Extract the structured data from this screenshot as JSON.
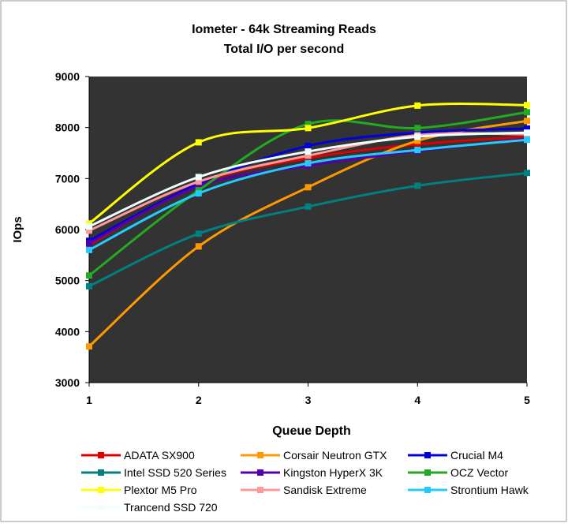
{
  "chart_data": {
    "type": "line",
    "title": "Iometer - 64k Streaming Reads",
    "subtitle": "Total I/O per second",
    "xlabel": "Queue Depth",
    "ylabel": "IOps",
    "x": [
      1,
      2,
      3,
      4,
      5
    ],
    "ylim": [
      3000,
      9000
    ],
    "yticks": [
      3000,
      4000,
      5000,
      6000,
      7000,
      8000,
      9000
    ],
    "grid": false,
    "legend": "bottom",
    "plot_background": "#333333",
    "series": [
      {
        "name": "ADATA SX900",
        "color": "#e00000",
        "values": [
          5700,
          6900,
          7400,
          7670,
          7820
        ]
      },
      {
        "name": "Corsair Neutron GTX",
        "color": "#ff9900",
        "values": [
          3710,
          5670,
          6830,
          7740,
          8130
        ]
      },
      {
        "name": "Crucial M4",
        "color": "#0000dd",
        "values": [
          5780,
          6900,
          7640,
          7900,
          7980
        ]
      },
      {
        "name": "Intel SSD 520 Series",
        "color": "#008080",
        "values": [
          4890,
          5920,
          6450,
          6860,
          7110
        ]
      },
      {
        "name": "Kingston HyperX 3K",
        "color": "#5500aa",
        "values": [
          5730,
          6850,
          7250,
          7540,
          7780
        ]
      },
      {
        "name": "OCZ Vector",
        "color": "#22aa22",
        "values": [
          5100,
          6770,
          8070,
          7990,
          8300
        ]
      },
      {
        "name": "Plextor M5 Pro",
        "color": "#ffff00",
        "values": [
          6120,
          7710,
          7990,
          8430,
          8440
        ]
      },
      {
        "name": "Sandisk Extreme",
        "color": "#ff9999",
        "values": [
          5980,
          6940,
          7450,
          7850,
          7870
        ]
      },
      {
        "name": "Strontium Hawk",
        "color": "#22ccff",
        "values": [
          5600,
          6710,
          7300,
          7560,
          7760
        ]
      },
      {
        "name": "Trancend SSD 720",
        "color": "#eeffff",
        "values": [
          6060,
          7030,
          7530,
          7820,
          7900
        ]
      }
    ]
  }
}
